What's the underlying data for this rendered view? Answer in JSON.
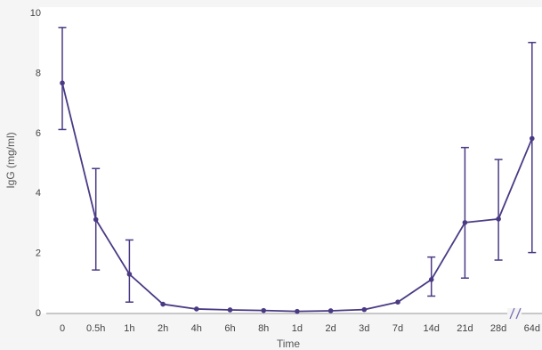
{
  "chart_data": {
    "type": "line",
    "xlabel": "Time",
    "ylabel": "IgG (mg/ml)",
    "ylim": [
      0,
      10
    ],
    "yticks": [
      "0",
      "2",
      "4",
      "6",
      "8",
      "10"
    ],
    "grid": false,
    "axis_break": true,
    "categories": [
      "0",
      "0.5h",
      "1h",
      "2h",
      "4h",
      "6h",
      "8h",
      "1d",
      "2d",
      "3d",
      "7d",
      "14d",
      "21d",
      "28d",
      "64d"
    ],
    "series": [
      {
        "values": [
          7.65,
          3.1,
          1.28,
          0.28,
          0.12,
          0.09,
          0.07,
          0.04,
          0.06,
          0.1,
          0.35,
          1.1,
          3.0,
          3.12,
          5.8
        ],
        "error_low": [
          6.1,
          1.42,
          0.35,
          null,
          null,
          null,
          null,
          null,
          null,
          null,
          null,
          0.55,
          1.15,
          1.75,
          2.0
        ],
        "error_high": [
          9.5,
          4.8,
          2.42,
          null,
          null,
          null,
          null,
          null,
          null,
          null,
          null,
          1.85,
          5.5,
          5.1,
          9.0
        ],
        "color": "#4a3a84"
      }
    ]
  }
}
